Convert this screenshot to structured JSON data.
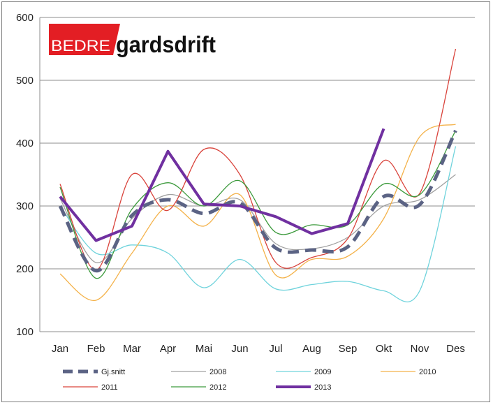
{
  "logo": {
    "part1": "BEDRE",
    "part2": "gardsdrift",
    "red": "#e31e24"
  },
  "chart_data": {
    "type": "line",
    "categories": [
      "Jan",
      "Feb",
      "Mar",
      "Apr",
      "Mai",
      "Jun",
      "Jul",
      "Aug",
      "Sep",
      "Okt",
      "Nov",
      "Des"
    ],
    "ylim": [
      100,
      600
    ],
    "yticks": [
      "100",
      "200",
      "300",
      "400",
      "500",
      "600"
    ],
    "grid": true,
    "legend_position": "bottom",
    "series": [
      {
        "name": "Gj.snitt",
        "color": "#5b6384",
        "style": "dashed-thick",
        "values": [
          300,
          197,
          285,
          310,
          288,
          305,
          233,
          230,
          235,
          315,
          302,
          420
        ]
      },
      {
        "name": "2008",
        "color": "#a0a0a0",
        "style": "thin",
        "values": [
          312,
          210,
          280,
          318,
          300,
          310,
          240,
          232,
          250,
          300,
          310,
          350
        ]
      },
      {
        "name": "2009",
        "color": "#6fd3dc",
        "style": "thin",
        "values": [
          300,
          225,
          238,
          225,
          170,
          215,
          168,
          175,
          180,
          165,
          165,
          395
        ]
      },
      {
        "name": "2010",
        "color": "#f4b24a",
        "style": "thin",
        "values": [
          192,
          150,
          225,
          300,
          268,
          318,
          190,
          215,
          220,
          280,
          410,
          430
        ]
      },
      {
        "name": "2011",
        "color": "#d9433b",
        "style": "thin",
        "values": [
          335,
          198,
          350,
          293,
          390,
          350,
          210,
          218,
          248,
          372,
          320,
          550
        ]
      },
      {
        "name": "2012",
        "color": "#3c9a3c",
        "style": "thin",
        "values": [
          330,
          185,
          295,
          337,
          300,
          340,
          258,
          270,
          270,
          335,
          318,
          420
        ]
      },
      {
        "name": "2013",
        "color": "#7030a0",
        "style": "thick",
        "values": [
          315,
          245,
          268,
          387,
          303,
          300,
          283,
          256,
          272,
          423,
          null,
          null
        ]
      }
    ]
  }
}
